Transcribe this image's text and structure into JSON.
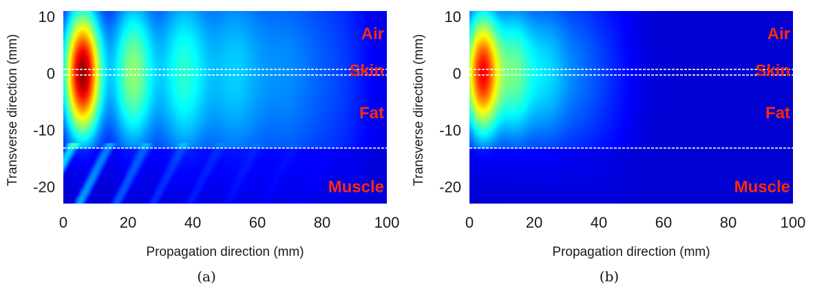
{
  "chart_data": [
    {
      "type": "heatmap",
      "id": "a",
      "caption": "(a)",
      "xlabel": "Propagation direction (mm)",
      "ylabel": "Transverse direction (mm)",
      "xlim": [
        0,
        100
      ],
      "ylim": [
        -23,
        11
      ],
      "xticks": [
        0,
        20,
        40,
        60,
        80,
        100
      ],
      "yticks": [
        10,
        0,
        -10,
        -20
      ],
      "boundaries_mm": [
        0.7,
        -0.3,
        -13.2
      ],
      "regions": [
        {
          "name": "Air",
          "y": 7
        },
        {
          "name": "Skin",
          "y": 0.5
        },
        {
          "name": "Fat",
          "y": -7
        },
        {
          "name": "Muscle",
          "y": -20
        }
      ],
      "field": {
        "peak_x": 6,
        "lobe_spacing": 15.5,
        "lobes": [
          {
            "x": 6,
            "intensity": 1.0
          },
          {
            "x": 21.5,
            "intensity": 0.42
          },
          {
            "x": 37,
            "intensity": 0.3
          },
          {
            "x": 52.5,
            "intensity": 0.2
          },
          {
            "x": 68,
            "intensity": 0.13
          },
          {
            "x": 83.5,
            "intensity": 0.08
          }
        ],
        "muscle_stripes": true
      },
      "colormap": "jet"
    },
    {
      "type": "heatmap",
      "id": "b",
      "caption": "(b)",
      "xlabel": "Propagation direction (mm)",
      "ylabel": "Transverse direction (mm)",
      "xlim": [
        0,
        100
      ],
      "ylim": [
        -23,
        11
      ],
      "xticks": [
        0,
        20,
        40,
        60,
        80,
        100
      ],
      "yticks": [
        10,
        0,
        -10,
        -20
      ],
      "boundaries_mm": [
        0.7,
        -0.3,
        -13.2
      ],
      "regions": [
        {
          "name": "Air",
          "y": 7
        },
        {
          "name": "Skin",
          "y": 0.5
        },
        {
          "name": "Fat",
          "y": -7
        },
        {
          "name": "Muscle",
          "y": -20
        }
      ],
      "field": {
        "peak_x": 4,
        "lobe_spacing": 9.8,
        "lobes": [
          {
            "x": 4,
            "intensity": 0.85
          },
          {
            "x": 13.8,
            "intensity": 0.35
          },
          {
            "x": 23.6,
            "intensity": 0.2
          },
          {
            "x": 33.4,
            "intensity": 0.1
          },
          {
            "x": 43.2,
            "intensity": 0.05
          }
        ],
        "muscle_stripes": false
      },
      "colormap": "jet"
    }
  ]
}
